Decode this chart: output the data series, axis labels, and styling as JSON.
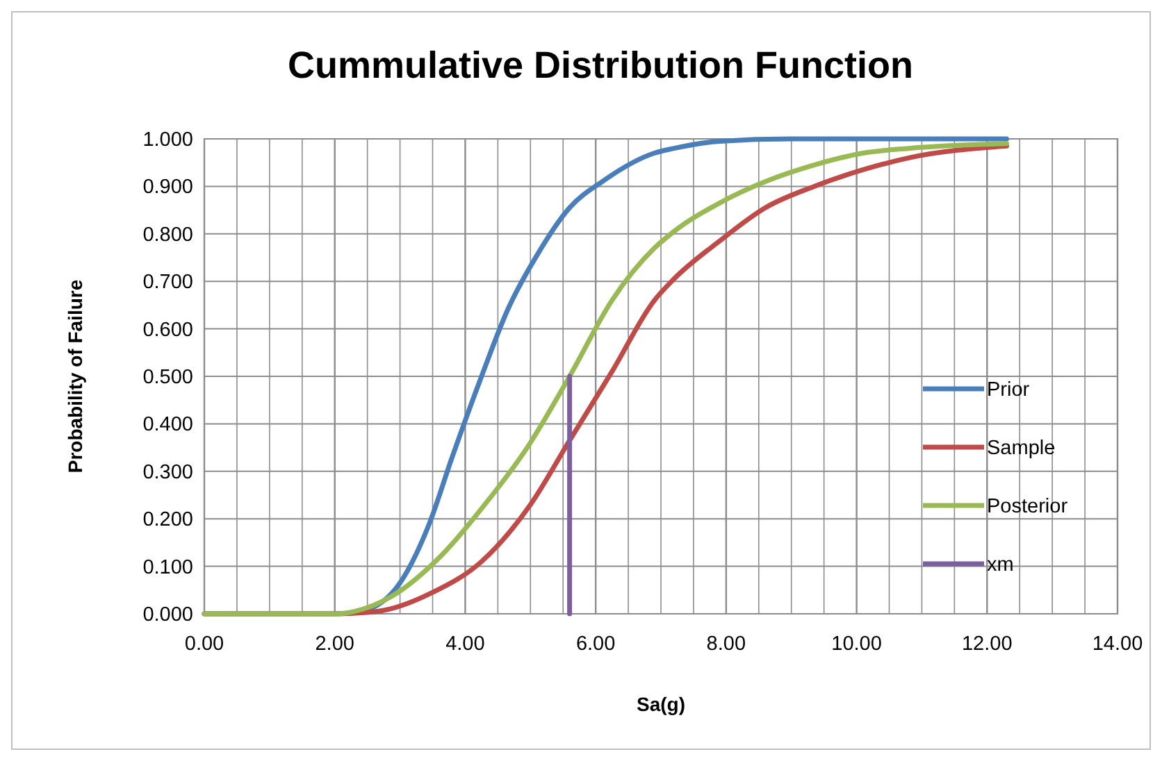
{
  "chart_data": {
    "type": "line",
    "title": "Cummulative Distribution Function",
    "xlabel": "Sa(g)",
    "ylabel": "Probability of Failure",
    "xlim": [
      0,
      14
    ],
    "ylim": [
      0,
      1
    ],
    "xticks": [
      {
        "value": 0,
        "label": "0.00"
      },
      {
        "value": 0.5,
        "label": null
      },
      {
        "value": 1,
        "label": null
      },
      {
        "value": 1.5,
        "label": null
      },
      {
        "value": 2,
        "label": "2.00"
      },
      {
        "value": 2.5,
        "label": null
      },
      {
        "value": 3,
        "label": null
      },
      {
        "value": 3.5,
        "label": null
      },
      {
        "value": 4,
        "label": "4.00"
      },
      {
        "value": 4.5,
        "label": null
      },
      {
        "value": 5,
        "label": null
      },
      {
        "value": 5.5,
        "label": null
      },
      {
        "value": 6,
        "label": "6.00"
      },
      {
        "value": 6.5,
        "label": null
      },
      {
        "value": 7,
        "label": null
      },
      {
        "value": 7.5,
        "label": null
      },
      {
        "value": 8,
        "label": "8.00"
      },
      {
        "value": 8.5,
        "label": null
      },
      {
        "value": 9,
        "label": null
      },
      {
        "value": 9.5,
        "label": null
      },
      {
        "value": 10,
        "label": "10.00"
      },
      {
        "value": 10.5,
        "label": null
      },
      {
        "value": 11,
        "label": null
      },
      {
        "value": 11.5,
        "label": null
      },
      {
        "value": 12,
        "label": "12.00"
      },
      {
        "value": 12.5,
        "label": null
      },
      {
        "value": 13,
        "label": null
      },
      {
        "value": 13.5,
        "label": null
      },
      {
        "value": 14,
        "label": "14.00"
      }
    ],
    "yticks": [
      {
        "value": 0,
        "label": "0.000"
      },
      {
        "value": 0.1,
        "label": "0.100"
      },
      {
        "value": 0.2,
        "label": "0.200"
      },
      {
        "value": 0.3,
        "label": "0.300"
      },
      {
        "value": 0.4,
        "label": "0.400"
      },
      {
        "value": 0.5,
        "label": "0.500"
      },
      {
        "value": 0.6,
        "label": "0.600"
      },
      {
        "value": 0.7,
        "label": "0.700"
      },
      {
        "value": 0.8,
        "label": "0.800"
      },
      {
        "value": 0.9,
        "label": "0.900"
      },
      {
        "value": 1,
        "label": "1.000"
      }
    ],
    "grid": true,
    "legend": "right",
    "line_style": "solid",
    "series": [
      {
        "name": "Prior",
        "color": "#4a7ebb",
        "x": [
          0,
          2,
          2.4,
          3.0,
          3.45,
          3.8,
          4.25,
          4.65,
          5.1,
          5.6,
          6.1,
          6.9,
          7.2,
          7.9,
          9,
          10,
          11,
          12.3
        ],
        "values": [
          0,
          0,
          0.005,
          0.065,
          0.19,
          0.33,
          0.5,
          0.64,
          0.755,
          0.855,
          0.91,
          0.97,
          0.98,
          0.995,
          1,
          1,
          1,
          1
        ]
      },
      {
        "name": "Sample",
        "color": "#be4b48",
        "x": [
          0,
          2,
          2.65,
          3.5,
          4.25,
          5.0,
          5.6,
          6.25,
          6.9,
          7.2,
          7.9,
          8.6,
          9.35,
          10.1,
          10.8,
          12.3
        ],
        "values": [
          0,
          0,
          0.005,
          0.045,
          0.11,
          0.23,
          0.365,
          0.51,
          0.66,
          0.705,
          0.785,
          0.855,
          0.9,
          0.935,
          0.96,
          0.985
        ]
      },
      {
        "name": "Posterior",
        "color": "#98b954",
        "x": [
          0,
          2,
          2.3,
          2.85,
          3.65,
          4.3,
          4.95,
          5.6,
          6.25,
          6.9,
          7.2,
          7.9,
          8.6,
          9.35,
          10.1,
          10.8,
          12.3
        ],
        "values": [
          0,
          0,
          0.005,
          0.035,
          0.125,
          0.23,
          0.35,
          0.5,
          0.66,
          0.77,
          0.805,
          0.865,
          0.91,
          0.945,
          0.97,
          0.98,
          0.99
        ]
      },
      {
        "name": "xm",
        "color": "#7d5fa0",
        "x": [
          5.6,
          5.6
        ],
        "values": [
          0,
          0.5
        ]
      }
    ]
  }
}
